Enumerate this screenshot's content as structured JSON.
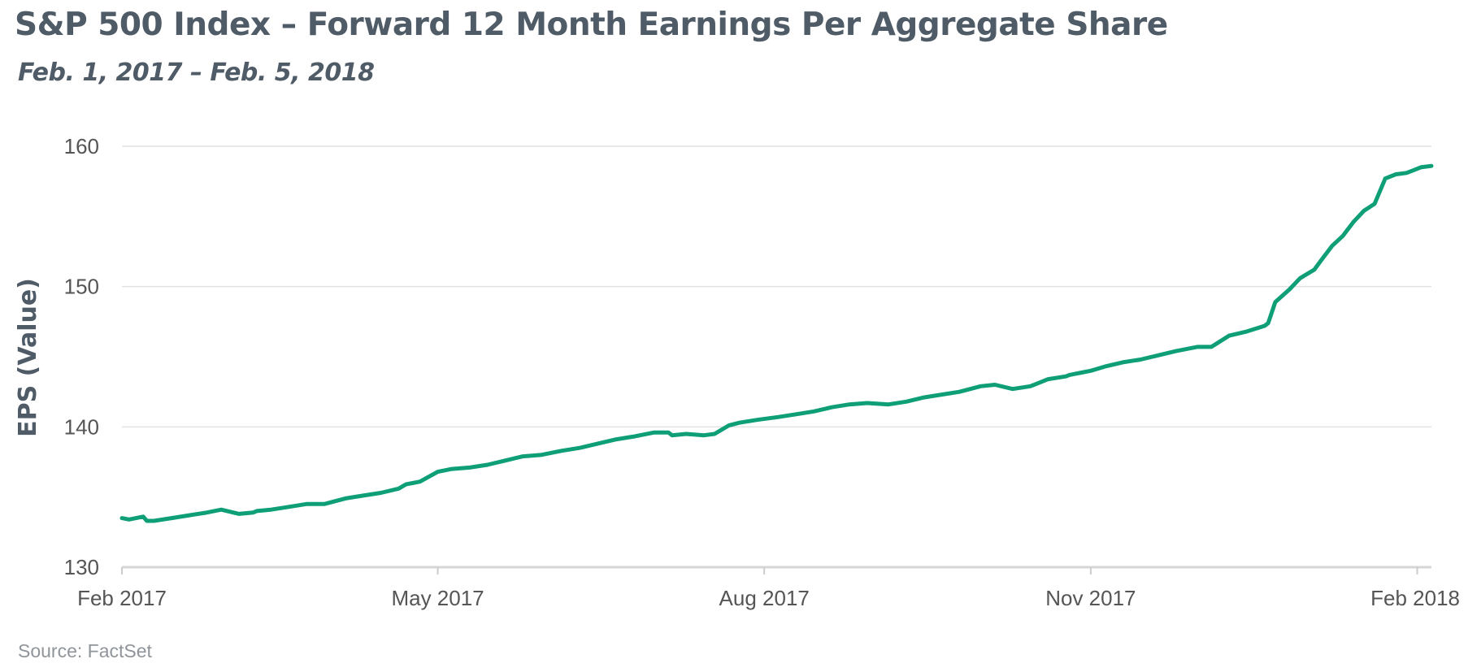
{
  "chart_data": {
    "type": "line",
    "title": "S&P 500 Index – Forward 12 Month Earnings Per Aggregate Share",
    "subtitle": "Feb. 1, 2017 – Feb. 5, 2018",
    "xlabel": "",
    "ylabel": "EPS (Value)",
    "source": "Source: FactSet",
    "ylim": [
      130,
      160
    ],
    "yticks": [
      130,
      140,
      150,
      160
    ],
    "ytick_labels": [
      "130",
      "140",
      "150",
      "160"
    ],
    "xlim": [
      "2017-02-01",
      "2018-02-05"
    ],
    "xticks": [
      "2017-02-01",
      "2017-05-01",
      "2017-08-01",
      "2017-11-01",
      "2018-02-01"
    ],
    "xtick_labels": [
      "Feb 2017",
      "May 2017",
      "Aug 2017",
      "Nov 2017",
      "Feb 2018"
    ],
    "grid": true,
    "line_color": "#0e9f77",
    "series": [
      {
        "x": [
          "2017-02-01",
          "2017-02-03",
          "2017-02-07",
          "2017-02-08",
          "2017-02-10",
          "2017-02-15",
          "2017-02-20",
          "2017-02-25",
          "2017-03-01",
          "2017-03-06",
          "2017-03-10",
          "2017-03-11",
          "2017-03-15",
          "2017-03-20",
          "2017-03-25",
          "2017-03-30",
          "2017-04-05",
          "2017-04-10",
          "2017-04-15",
          "2017-04-20",
          "2017-04-22",
          "2017-04-26",
          "2017-05-01",
          "2017-05-05",
          "2017-05-10",
          "2017-05-15",
          "2017-05-20",
          "2017-05-25",
          "2017-05-30",
          "2017-06-05",
          "2017-06-10",
          "2017-06-15",
          "2017-06-20",
          "2017-06-25",
          "2017-07-01",
          "2017-07-05",
          "2017-07-06",
          "2017-07-10",
          "2017-07-15",
          "2017-07-18",
          "2017-07-22",
          "2017-07-25",
          "2017-07-30",
          "2017-08-05",
          "2017-08-10",
          "2017-08-15",
          "2017-08-20",
          "2017-08-25",
          "2017-08-30",
          "2017-09-05",
          "2017-09-10",
          "2017-09-15",
          "2017-09-20",
          "2017-09-25",
          "2017-10-01",
          "2017-10-05",
          "2017-10-10",
          "2017-10-15",
          "2017-10-20",
          "2017-10-25",
          "2017-10-26",
          "2017-10-30",
          "2017-11-01",
          "2017-11-05",
          "2017-11-10",
          "2017-11-15",
          "2017-11-20",
          "2017-11-25",
          "2017-12-01",
          "2017-12-05",
          "2017-12-10",
          "2017-12-15",
          "2017-12-20",
          "2017-12-21",
          "2017-12-23",
          "2017-12-27",
          "2017-12-30",
          "2018-01-03",
          "2018-01-05",
          "2018-01-08",
          "2018-01-11",
          "2018-01-14",
          "2018-01-17",
          "2018-01-20",
          "2018-01-23",
          "2018-01-26",
          "2018-01-29",
          "2018-01-31",
          "2018-02-02",
          "2018-02-05"
        ],
        "values": [
          133.5,
          133.4,
          133.6,
          133.3,
          133.3,
          133.5,
          133.7,
          133.9,
          134.1,
          133.8,
          133.9,
          134.0,
          134.1,
          134.3,
          134.5,
          134.5,
          134.9,
          135.1,
          135.3,
          135.6,
          135.9,
          136.1,
          136.8,
          137.0,
          137.1,
          137.3,
          137.6,
          137.9,
          138.0,
          138.3,
          138.5,
          138.8,
          139.1,
          139.3,
          139.6,
          139.6,
          139.4,
          139.5,
          139.4,
          139.5,
          140.1,
          140.3,
          140.5,
          140.7,
          140.9,
          141.1,
          141.4,
          141.6,
          141.7,
          141.6,
          141.8,
          142.1,
          142.3,
          142.5,
          142.9,
          143.0,
          142.7,
          142.9,
          143.4,
          143.6,
          143.7,
          143.9,
          144.0,
          144.3,
          144.6,
          144.8,
          145.1,
          145.4,
          145.7,
          145.7,
          146.5,
          146.8,
          147.2,
          147.4,
          148.9,
          149.8,
          150.6,
          151.2,
          151.9,
          152.9,
          153.6,
          154.6,
          155.4,
          155.9,
          157.7,
          158.0,
          158.1,
          158.3,
          158.5,
          158.6
        ]
      }
    ]
  }
}
